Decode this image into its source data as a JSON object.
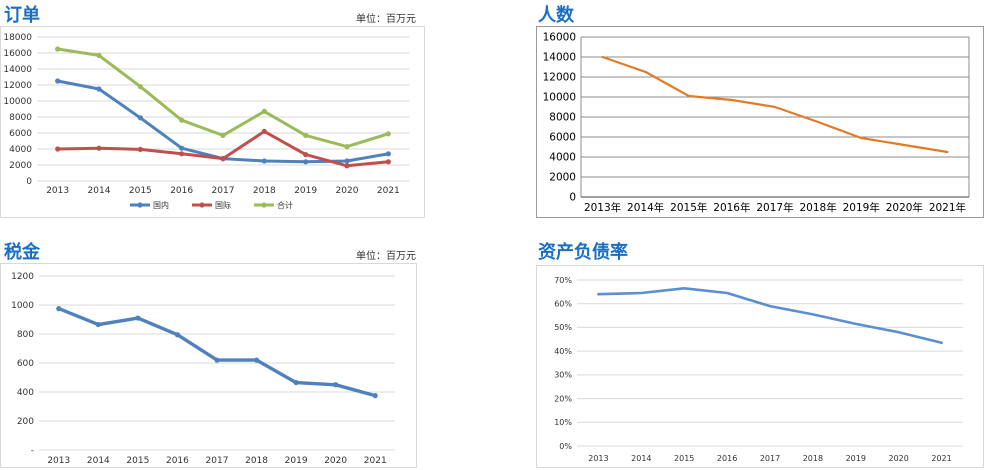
{
  "charts": [
    {
      "title": "订单",
      "unit": "单位：百万元",
      "chart_data": {
        "type": "line",
        "categories": [
          "2013",
          "2014",
          "2015",
          "2016",
          "2017",
          "2018",
          "2019",
          "2020",
          "2021"
        ],
        "ylim": [
          0,
          18000
        ],
        "yticks": [
          0,
          2000,
          4000,
          6000,
          8000,
          10000,
          12000,
          14000,
          16000,
          18000
        ],
        "ytick_labels": [
          "0",
          "2000",
          "4000",
          "6000",
          "8000",
          "10000",
          "12000",
          "14000",
          "16000",
          "18000"
        ],
        "grid": true,
        "legend_position": "bottom",
        "series": [
          {
            "name": "国内",
            "color": "#4f81bd",
            "values": [
              12500,
              11500,
              7900,
              4100,
              2800,
              2500,
              2400,
              2500,
              3400
            ]
          },
          {
            "name": "国际",
            "color": "#c0504d",
            "values": [
              4000,
              4100,
              3950,
              3400,
              2800,
              6200,
              3300,
              1900,
              2400
            ]
          },
          {
            "name": "合计",
            "color": "#9bbb59",
            "values": [
              16500,
              15700,
              11800,
              7600,
              5700,
              8700,
              5700,
              4300,
              5900
            ]
          }
        ]
      }
    },
    {
      "title": "人数",
      "unit": "",
      "chart_data": {
        "type": "line",
        "categories": [
          "2013年",
          "2014年",
          "2015年",
          "2016年",
          "2017年",
          "2018年",
          "2019年",
          "2020年",
          "2021年"
        ],
        "ylim": [
          0,
          16000
        ],
        "yticks": [
          0,
          2000,
          4000,
          6000,
          8000,
          10000,
          12000,
          14000,
          16000
        ],
        "ytick_labels": [
          "0",
          "2000",
          "4000",
          "6000",
          "8000",
          "10000",
          "12000",
          "14000",
          "16000"
        ],
        "grid": true,
        "legend_position": "none",
        "series": [
          {
            "color": "#e07b2a",
            "values": [
              14000,
              12500,
              10100,
              9700,
              9000,
              7500,
              5900,
              5200,
              4500
            ]
          }
        ]
      }
    },
    {
      "title": "税金",
      "unit": "单位：百万元",
      "chart_data": {
        "type": "line",
        "categories": [
          "2013",
          "2014",
          "2015",
          "2016",
          "2017",
          "2018",
          "2019",
          "2020",
          "2021"
        ],
        "ylim": [
          0,
          1200
        ],
        "yticks": [
          0,
          200,
          400,
          600,
          800,
          1000,
          1200
        ],
        "ytick_labels": [
          "-",
          "200",
          "400",
          "600",
          "800",
          "1000",
          "1200"
        ],
        "grid": true,
        "legend_position": "none",
        "series": [
          {
            "color": "#4f81bd",
            "values": [
              975,
              865,
              910,
              795,
              620,
              620,
              465,
              450,
              375
            ]
          }
        ]
      }
    },
    {
      "title": "资产负债率",
      "unit": "",
      "chart_data": {
        "type": "line",
        "categories": [
          "2013",
          "2014",
          "2015",
          "2016",
          "2017",
          "2018",
          "2019",
          "2020",
          "2021"
        ],
        "ylim": [
          0,
          70
        ],
        "yticks": [
          0,
          10,
          20,
          30,
          40,
          50,
          60,
          70
        ],
        "ytick_labels": [
          "0%",
          "10%",
          "20%",
          "30%",
          "40%",
          "50%",
          "60%",
          "70%"
        ],
        "grid": true,
        "legend_position": "none",
        "series": [
          {
            "color": "#5b8fd0",
            "values": [
              64,
              64.5,
              66.5,
              64.5,
              59,
              55.5,
              51.5,
              48,
              43.5
            ]
          }
        ]
      }
    }
  ]
}
